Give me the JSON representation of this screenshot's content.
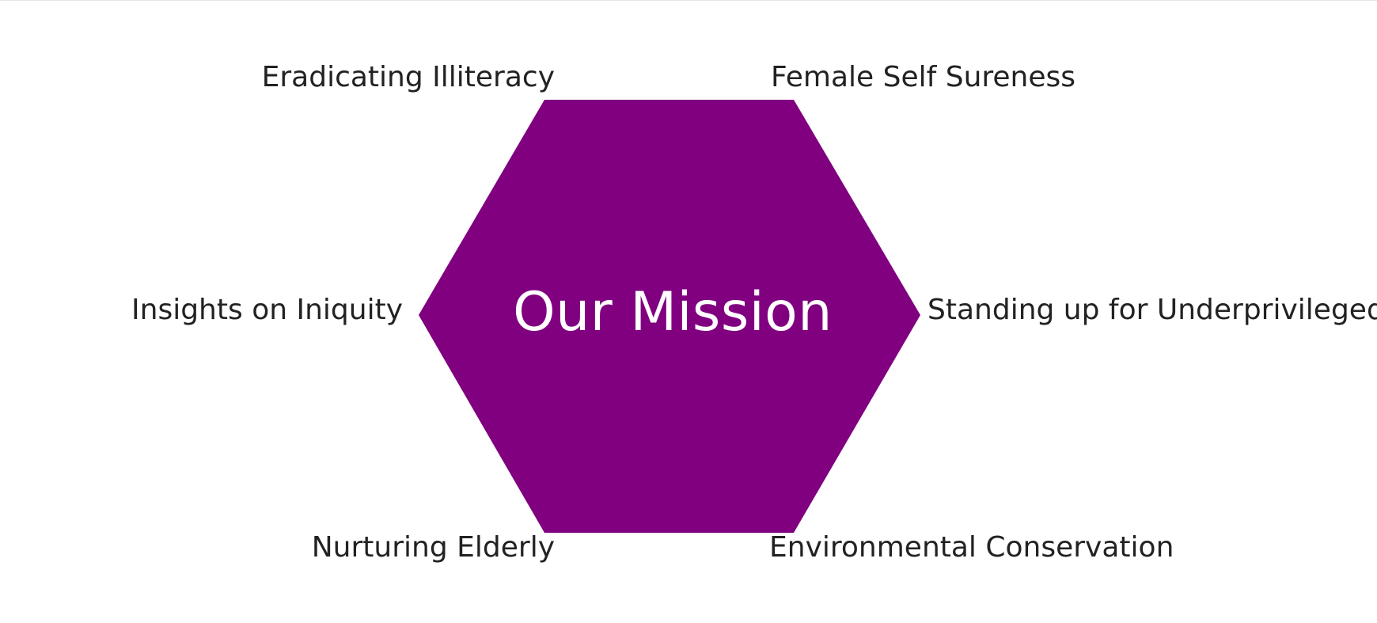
{
  "diagram": {
    "center_title": "Our Mission",
    "hexagon_color": "#800080",
    "items": {
      "top_left": "Eradicating Illiteracy",
      "top_right": "Female Self Sureness",
      "middle_left": "Insights on Iniquity",
      "middle_right": "Standing up for Underprivileged",
      "bottom_left": "Nurturing Elderly",
      "bottom_right": "Environmental Conservation"
    }
  }
}
